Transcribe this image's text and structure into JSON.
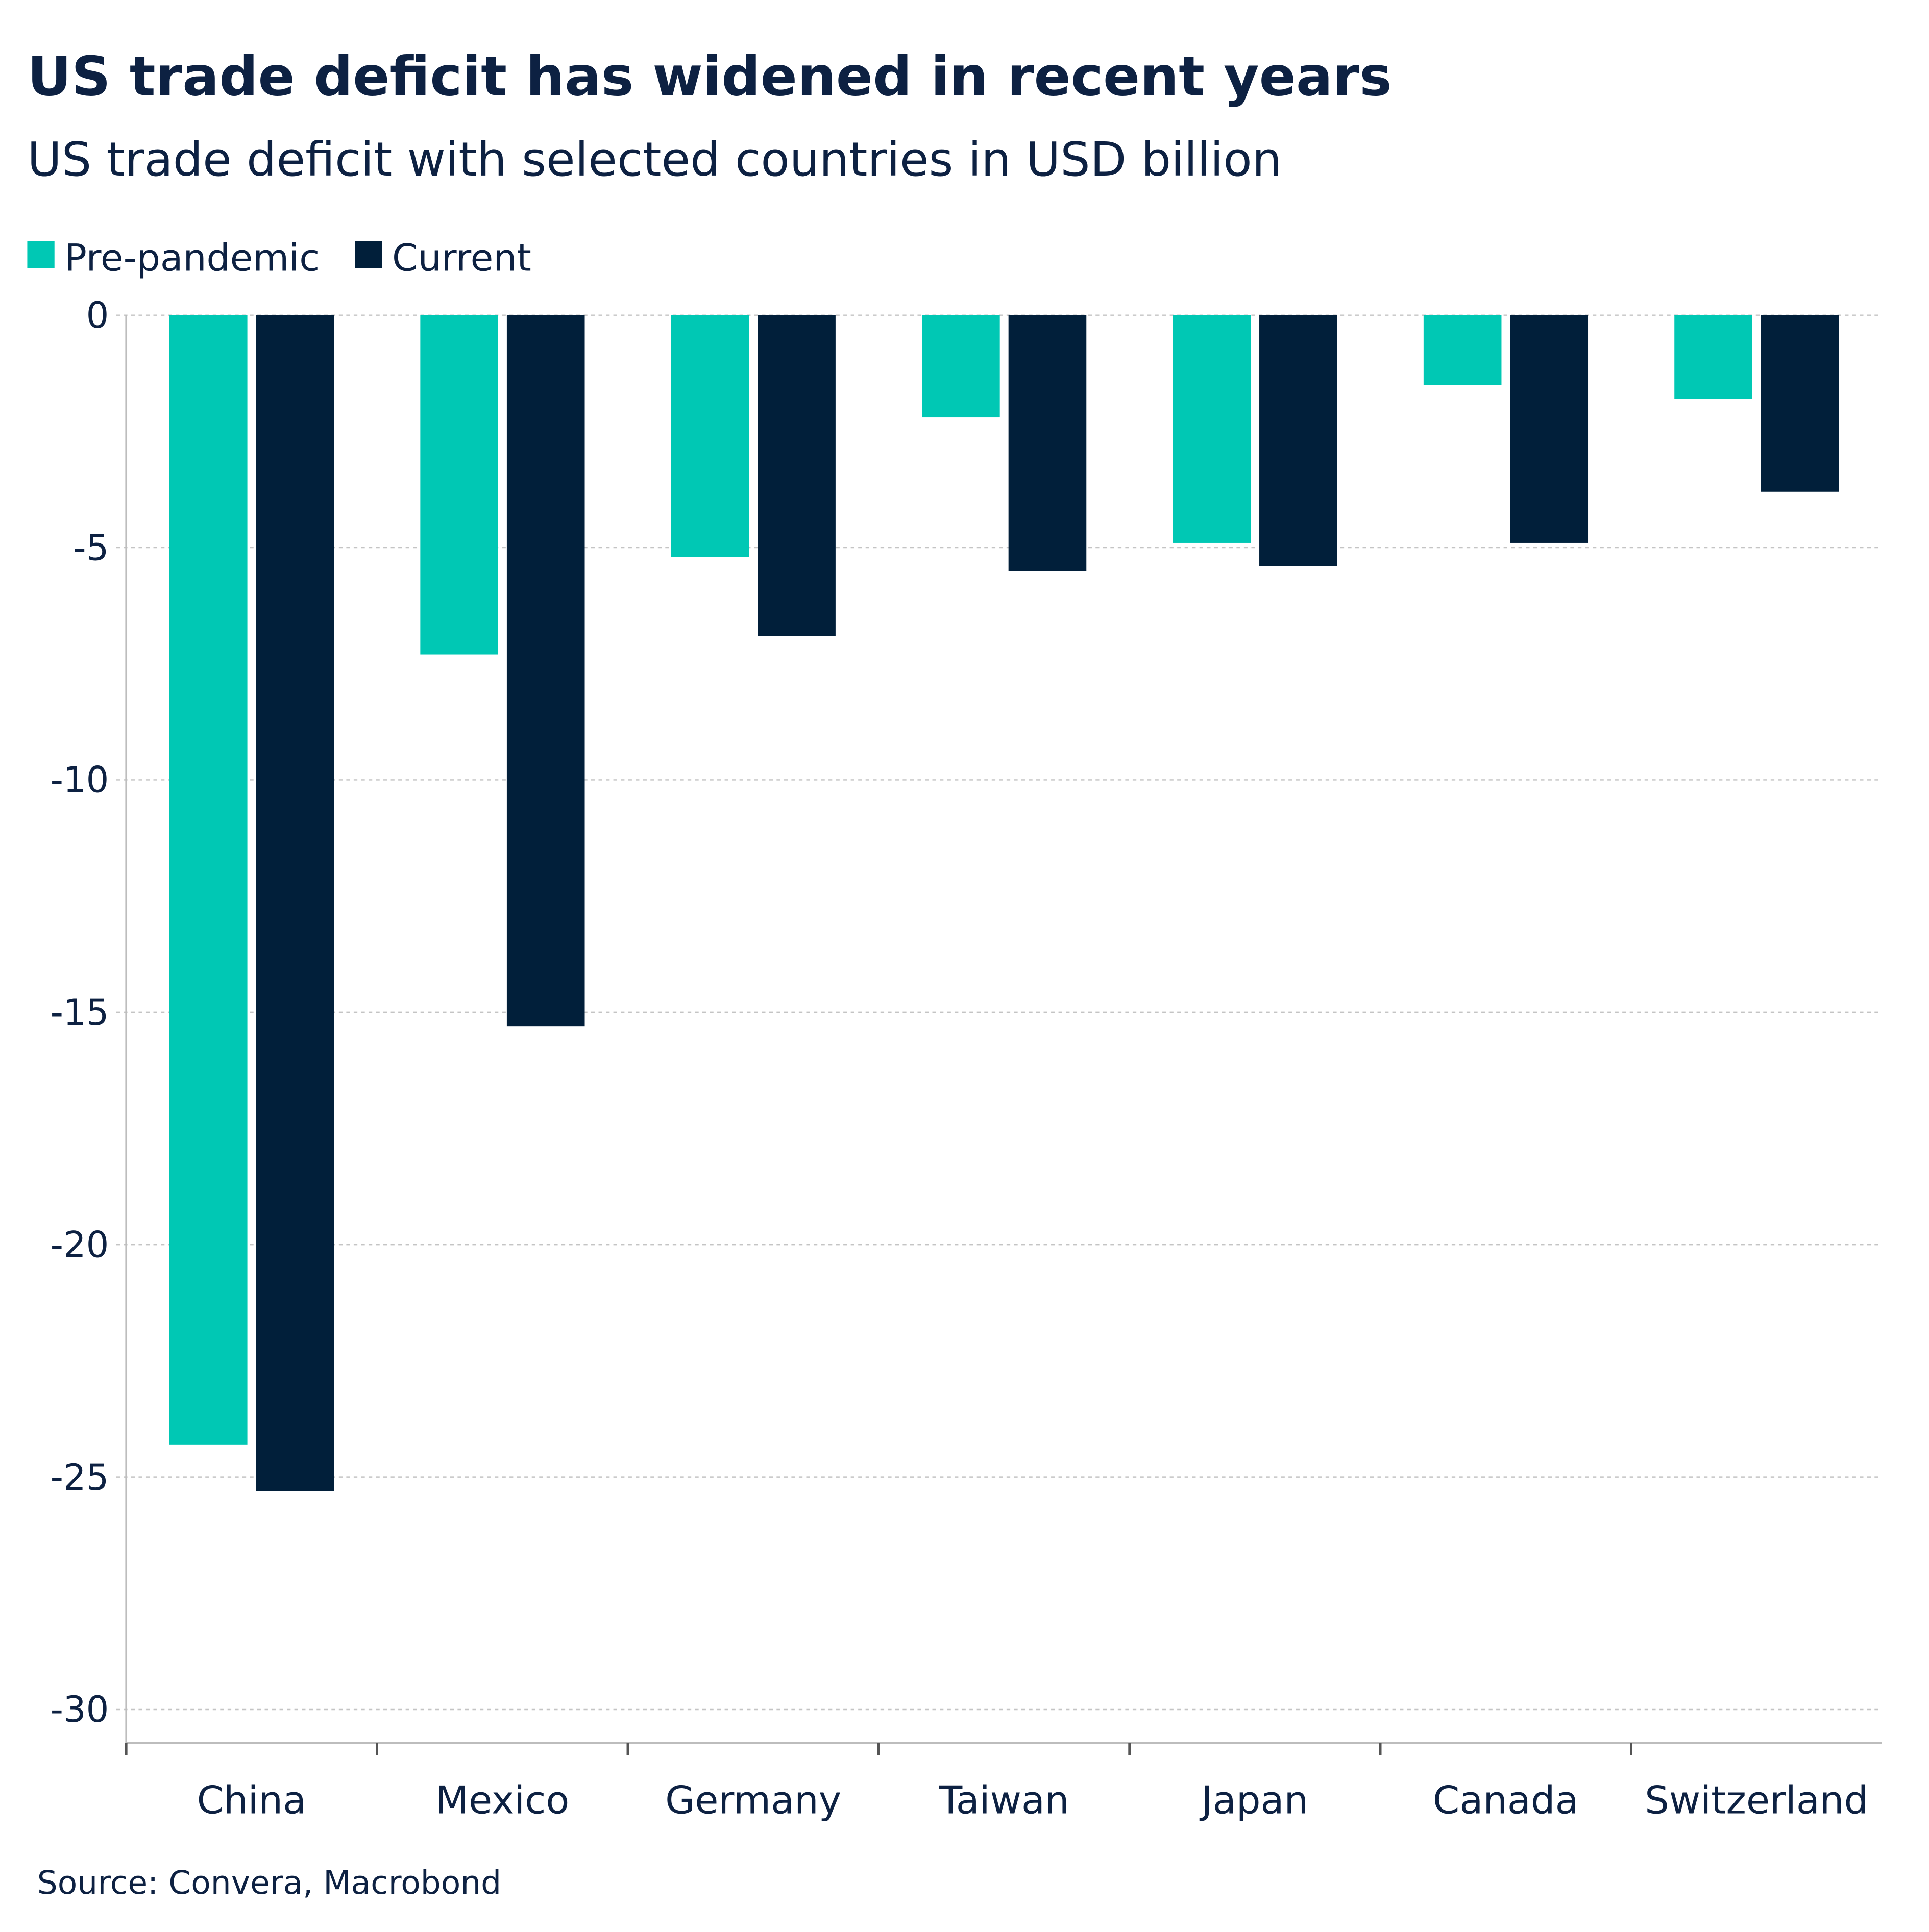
{
  "chart_data": {
    "type": "bar",
    "title": "US trade deficit has widened in recent years",
    "subtitle": "US trade deficit with selected countries in USD billion",
    "categories": [
      "China",
      "Mexico",
      "Germany",
      "Taiwan",
      "Japan",
      "Canada",
      "Switzerland"
    ],
    "series": [
      {
        "name": "Pre-pandemic",
        "color": "#00c8b4",
        "values": [
          -24.3,
          -7.3,
          -5.2,
          -2.2,
          -4.9,
          -1.5,
          -1.8
        ]
      },
      {
        "name": "Current",
        "color": "#011f3a",
        "values": [
          -25.3,
          -15.3,
          -6.9,
          -5.5,
          -5.4,
          -4.9,
          -3.8
        ]
      }
    ],
    "yticks": [
      "0",
      "-5",
      "-10",
      "-15",
      "-20",
      "-25",
      "-30"
    ],
    "ylim": [
      -30,
      0
    ],
    "grid": true,
    "legend": "top-left",
    "xlabel": "",
    "ylabel": "",
    "source": "Source: Convera, Macrobond"
  }
}
